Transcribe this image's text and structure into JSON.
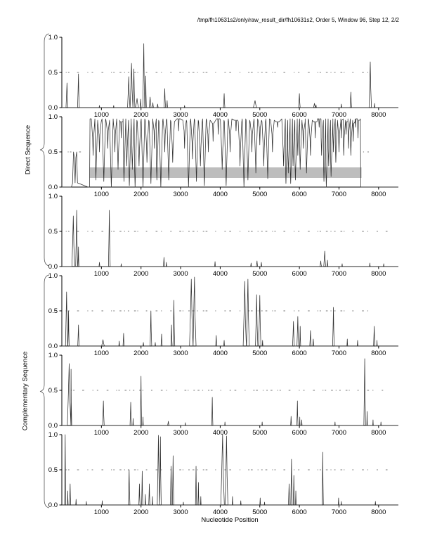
{
  "title": "/tmp/fh10631s2/only/raw_result_dir/fh10631s2, Order 5, Window 96, Step 12, 2/2",
  "chart_data": {
    "type": "line",
    "xlabel": "Nucleotide Position",
    "xlim": [
      0,
      8500
    ],
    "ylim": [
      0,
      1
    ],
    "xticks": [
      1000,
      2000,
      3000,
      4000,
      5000,
      6000,
      7000,
      8000
    ],
    "yticks": [
      0,
      0.5,
      1
    ],
    "grid": false,
    "legend": "none",
    "line_color": "#303030",
    "marker_color": "#7a7a7a",
    "band_color": "#bdbdbd",
    "groups": [
      {
        "label": "Direct Sequence",
        "panels": [
          0,
          1,
          2
        ]
      },
      {
        "label": "Complementary Sequence",
        "panels": [
          3,
          4,
          5
        ]
      }
    ],
    "panels": [
      {
        "kind": "peaks",
        "dash_ranges": [
          [
            100,
            7950
          ]
        ],
        "peaks": [
          [
            130,
            0.35,
            25
          ],
          [
            420,
            0.48,
            22
          ],
          [
            950,
            0.03,
            10
          ],
          [
            1310,
            0.03,
            10
          ],
          [
            1690,
            0.44,
            30
          ],
          [
            1760,
            0.63,
            35
          ],
          [
            1820,
            0.55,
            25
          ],
          [
            1900,
            0.13,
            40
          ],
          [
            1990,
            0.12,
            15
          ],
          [
            2070,
            0.91,
            25
          ],
          [
            2120,
            0.45,
            15
          ],
          [
            2230,
            0.15,
            25
          ],
          [
            2300,
            0.07,
            15
          ],
          [
            2420,
            0.05,
            15
          ],
          [
            2600,
            0.27,
            20
          ],
          [
            2660,
            0.1,
            12
          ],
          [
            3100,
            0.03,
            10
          ],
          [
            4100,
            0.2,
            18
          ],
          [
            4880,
            0.1,
            45
          ],
          [
            6000,
            0.2,
            20
          ],
          [
            6380,
            0.06,
            25
          ],
          [
            6420,
            0.04,
            12
          ],
          [
            7060,
            0.05,
            12
          ],
          [
            7300,
            0.22,
            20
          ],
          [
            7790,
            0.65,
            30
          ],
          [
            7900,
            0.06,
            10
          ]
        ]
      },
      {
        "kind": "dense",
        "dash_ranges": [
          [
            150,
            670
          ],
          [
            7610,
            7950
          ]
        ],
        "pre": [
          [
            0,
            0
          ],
          [
            240,
            0
          ],
          [
            270,
            0.05
          ],
          [
            295,
            0.5
          ],
          [
            315,
            0.42
          ],
          [
            335,
            0.06
          ],
          [
            355,
            0.42
          ],
          [
            375,
            0.5
          ],
          [
            395,
            0.06
          ],
          [
            660,
            0
          ]
        ],
        "dense_start": 700,
        "dense_end": 7550,
        "dense_top": 0.97,
        "dips": [
          [
            790,
            0.45
          ],
          [
            860,
            0.1
          ],
          [
            950,
            0.5
          ],
          [
            1060,
            0.08
          ],
          [
            1160,
            0.55
          ],
          [
            1250,
            0.0
          ],
          [
            1340,
            0.5
          ],
          [
            1420,
            0.25
          ],
          [
            1500,
            0.7
          ],
          [
            1570,
            0.08
          ],
          [
            1640,
            0.3
          ],
          [
            1705,
            0.02
          ],
          [
            1780,
            0.25
          ],
          [
            1850,
            0.0
          ],
          [
            1950,
            0.3
          ],
          [
            2050,
            0.0
          ],
          [
            2150,
            0.35
          ],
          [
            2250,
            0.05
          ],
          [
            2340,
            0.55
          ],
          [
            2400,
            0.1
          ],
          [
            2500,
            0.0
          ],
          [
            2600,
            0.5
          ],
          [
            2700,
            0.1
          ],
          [
            2800,
            0.35
          ],
          [
            2950,
            0.8
          ],
          [
            3100,
            0.55
          ],
          [
            3200,
            0.0
          ],
          [
            3300,
            0.4
          ],
          [
            3400,
            0.08
          ],
          [
            3500,
            0.3
          ],
          [
            3600,
            0.02
          ],
          [
            3700,
            0.5
          ],
          [
            3820,
            0.65
          ],
          [
            3950,
            0.75
          ],
          [
            4050,
            0.25
          ],
          [
            4150,
            0.02
          ],
          [
            4250,
            0.5
          ],
          [
            4400,
            0.8
          ],
          [
            4500,
            0.3
          ],
          [
            4600,
            0.0
          ],
          [
            4700,
            0.1
          ],
          [
            4800,
            0.5
          ],
          [
            4900,
            0.2
          ],
          [
            5000,
            0.6
          ],
          [
            5100,
            0.3
          ],
          [
            5200,
            0.12
          ],
          [
            5320,
            0.5
          ],
          [
            5450,
            0.85
          ],
          [
            5600,
            0.3
          ],
          [
            5660,
            0.05
          ],
          [
            5720,
            0.2
          ],
          [
            5780,
            0.05
          ],
          [
            5840,
            0.3
          ],
          [
            5900,
            0.1
          ],
          [
            5960,
            0.45
          ],
          [
            6020,
            0.25
          ],
          [
            6100,
            0.55
          ],
          [
            6180,
            0.2
          ],
          [
            6280,
            0.45
          ],
          [
            6400,
            0.7
          ],
          [
            6500,
            0.85
          ],
          [
            6560,
            0.45
          ],
          [
            6620,
            0.08
          ],
          [
            6680,
            0.0
          ],
          [
            6740,
            0.3
          ],
          [
            6800,
            0.15
          ],
          [
            6860,
            0.5
          ],
          [
            6920,
            0.35
          ],
          [
            7000,
            0.5
          ],
          [
            7060,
            0.7
          ],
          [
            7120,
            0.45
          ],
          [
            7180,
            0.75
          ],
          [
            7240,
            0.55
          ],
          [
            7300,
            0.45
          ],
          [
            7360,
            0.65
          ],
          [
            7420,
            0.85
          ],
          [
            7480,
            0.7
          ]
        ],
        "post": [
          [
            7560,
            0
          ],
          [
            8500,
            0
          ]
        ],
        "band": {
          "x0": 700,
          "x1": 7570,
          "y0": 0.13,
          "y1": 0.28
        }
      },
      {
        "kind": "peaks",
        "dash_ranges": [
          [
            100,
            8250
          ]
        ],
        "peaks": [
          [
            290,
            0.72,
            35
          ],
          [
            375,
            0.8,
            25
          ],
          [
            420,
            0.28,
            12
          ],
          [
            950,
            0.06,
            12
          ],
          [
            1200,
            0.8,
            22
          ],
          [
            1500,
            0.04,
            10
          ],
          [
            2580,
            0.13,
            15
          ],
          [
            2640,
            0.06,
            10
          ],
          [
            3870,
            0.07,
            12
          ],
          [
            4780,
            0.05,
            12
          ],
          [
            4930,
            0.08,
            18
          ],
          [
            5040,
            0.06,
            12
          ],
          [
            6540,
            0.08,
            18
          ],
          [
            6640,
            0.22,
            25
          ],
          [
            6710,
            0.09,
            12
          ],
          [
            7080,
            0.04,
            10
          ],
          [
            7780,
            0.05,
            10
          ],
          [
            8130,
            0.04,
            10
          ]
        ]
      },
      {
        "kind": "peaks",
        "dash_ranges": [
          [
            100,
            7950
          ]
        ],
        "peaks": [
          [
            120,
            0.77,
            28
          ],
          [
            170,
            0.5,
            15
          ],
          [
            420,
            0.3,
            18
          ],
          [
            1040,
            0.09,
            35
          ],
          [
            1450,
            0.07,
            12
          ],
          [
            1560,
            0.18,
            15
          ],
          [
            2060,
            0.05,
            12
          ],
          [
            2250,
            0.5,
            20
          ],
          [
            2360,
            0.05,
            10
          ],
          [
            2520,
            0.17,
            15
          ],
          [
            2770,
            0.3,
            15
          ],
          [
            2830,
            0.65,
            22
          ],
          [
            3270,
            0.95,
            45
          ],
          [
            3350,
            0.98,
            40
          ],
          [
            3900,
            0.15,
            15
          ],
          [
            4100,
            0.08,
            12
          ],
          [
            4620,
            0.92,
            40
          ],
          [
            4700,
            0.95,
            35
          ],
          [
            4920,
            0.73,
            30
          ],
          [
            5000,
            0.72,
            28
          ],
          [
            5070,
            0.08,
            10
          ],
          [
            5850,
            0.35,
            22
          ],
          [
            5960,
            0.42,
            22
          ],
          [
            6020,
            0.28,
            12
          ],
          [
            6280,
            0.22,
            18
          ],
          [
            6350,
            0.1,
            15
          ],
          [
            6860,
            0.55,
            20
          ],
          [
            7210,
            0.1,
            10
          ],
          [
            7470,
            0.08,
            10
          ],
          [
            7890,
            0.28,
            18
          ],
          [
            7960,
            0.08,
            8
          ]
        ]
      },
      {
        "kind": "peaks",
        "dash_ranges": [
          [
            230,
            8100
          ]
        ],
        "peaks": [
          [
            185,
            0.88,
            45
          ],
          [
            230,
            0.8,
            20
          ],
          [
            1050,
            0.35,
            20
          ],
          [
            1740,
            0.33,
            18
          ],
          [
            1800,
            0.1,
            8
          ],
          [
            2000,
            0.7,
            16
          ],
          [
            2050,
            0.12,
            8
          ],
          [
            2690,
            0.06,
            18
          ],
          [
            3120,
            0.04,
            8
          ],
          [
            3800,
            0.4,
            15
          ],
          [
            4120,
            0.05,
            8
          ],
          [
            5060,
            0.05,
            8
          ],
          [
            5790,
            0.13,
            12
          ],
          [
            5950,
            0.35,
            15
          ],
          [
            6010,
            0.12,
            8
          ],
          [
            6060,
            0.08,
            8
          ],
          [
            6900,
            0.05,
            8
          ],
          [
            7650,
            0.95,
            22
          ],
          [
            7710,
            0.2,
            8
          ],
          [
            7860,
            0.08,
            8
          ],
          [
            8060,
            0.05,
            8
          ]
        ]
      },
      {
        "kind": "peaks",
        "dash_ranges": [
          [
            100,
            8250
          ]
        ],
        "peaks": [
          [
            85,
            1.0,
            15
          ],
          [
            150,
            0.2,
            10
          ],
          [
            210,
            0.3,
            15
          ],
          [
            360,
            0.08,
            10
          ],
          [
            620,
            0.05,
            8
          ],
          [
            1020,
            0.06,
            8
          ],
          [
            1700,
            0.5,
            20
          ],
          [
            1960,
            0.3,
            15
          ],
          [
            2030,
            0.48,
            15
          ],
          [
            2110,
            0.15,
            10
          ],
          [
            2210,
            0.3,
            15
          ],
          [
            2290,
            0.12,
            8
          ],
          [
            2440,
            0.99,
            30
          ],
          [
            2490,
            0.97,
            20
          ],
          [
            2760,
            0.55,
            20
          ],
          [
            2810,
            0.7,
            18
          ],
          [
            3070,
            0.04,
            8
          ],
          [
            3390,
            0.55,
            15
          ],
          [
            3450,
            0.32,
            12
          ],
          [
            3510,
            0.12,
            8
          ],
          [
            4060,
            1.0,
            45
          ],
          [
            4160,
            0.98,
            35
          ],
          [
            4310,
            0.12,
            10
          ],
          [
            4520,
            0.06,
            10
          ],
          [
            5010,
            0.1,
            10
          ],
          [
            5120,
            0.04,
            8
          ],
          [
            5740,
            0.3,
            18
          ],
          [
            5800,
            0.65,
            18
          ],
          [
            5860,
            0.42,
            15
          ],
          [
            5910,
            0.2,
            10
          ],
          [
            6590,
            0.75,
            16
          ],
          [
            6990,
            0.1,
            10
          ],
          [
            7060,
            0.05,
            8
          ],
          [
            7920,
            0.05,
            8
          ]
        ]
      }
    ]
  }
}
